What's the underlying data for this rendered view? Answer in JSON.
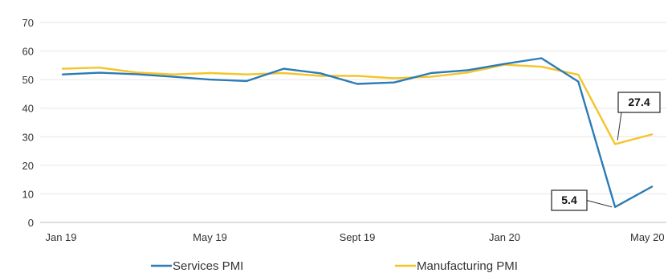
{
  "chart_data": {
    "type": "line",
    "x": [
      "Jan 19",
      "Feb 19",
      "Mar 19",
      "Apr 19",
      "May 19",
      "Jun 19",
      "Jul 19",
      "Aug 19",
      "Sept 19",
      "Oct 19",
      "Nov 19",
      "Dec 19",
      "Jan 20",
      "Feb 20",
      "Mar 20",
      "Apr 20",
      "May 20"
    ],
    "x_tick_labels": [
      "Jan 19",
      "May 19",
      "Sept 19",
      "Jan 20",
      "May 20"
    ],
    "x_tick_indices": [
      0,
      4,
      8,
      12,
      16
    ],
    "ylim": [
      0,
      70
    ],
    "yticks": [
      0,
      10,
      20,
      30,
      40,
      50,
      60,
      70
    ],
    "grid": "horizontal",
    "legend_position": "bottom",
    "series": [
      {
        "name": "Services PMI",
        "color": "#2c7bb6",
        "values": [
          51.8,
          52.4,
          51.9,
          51.0,
          50.0,
          49.5,
          53.8,
          52.2,
          48.5,
          49.0,
          52.3,
          53.3,
          55.5,
          57.5,
          49.3,
          5.4,
          12.5
        ]
      },
      {
        "name": "Manufacturing PMI",
        "color": "#f5c428",
        "values": [
          53.8,
          54.2,
          52.5,
          51.8,
          52.3,
          51.8,
          52.3,
          51.3,
          51.3,
          50.5,
          51.0,
          52.5,
          55.2,
          54.5,
          51.7,
          27.4,
          30.8
        ]
      }
    ],
    "annotations": [
      {
        "label": "27.4",
        "series": "Manufacturing PMI",
        "index": 15
      },
      {
        "label": "5.4",
        "series": "Services PMI",
        "index": 15
      }
    ]
  }
}
